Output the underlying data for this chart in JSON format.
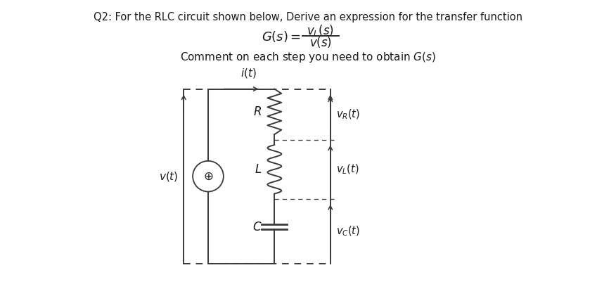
{
  "title": "Q2: For the RLC circuit shown below, Derive an expression for the transfer function",
  "comment": "Comment on each step you need to obtain $G(s)$",
  "bg_color": "#ffffff",
  "line_color": "#3a3a3a",
  "text_color": "#1a1a1a",
  "lw": 1.4
}
